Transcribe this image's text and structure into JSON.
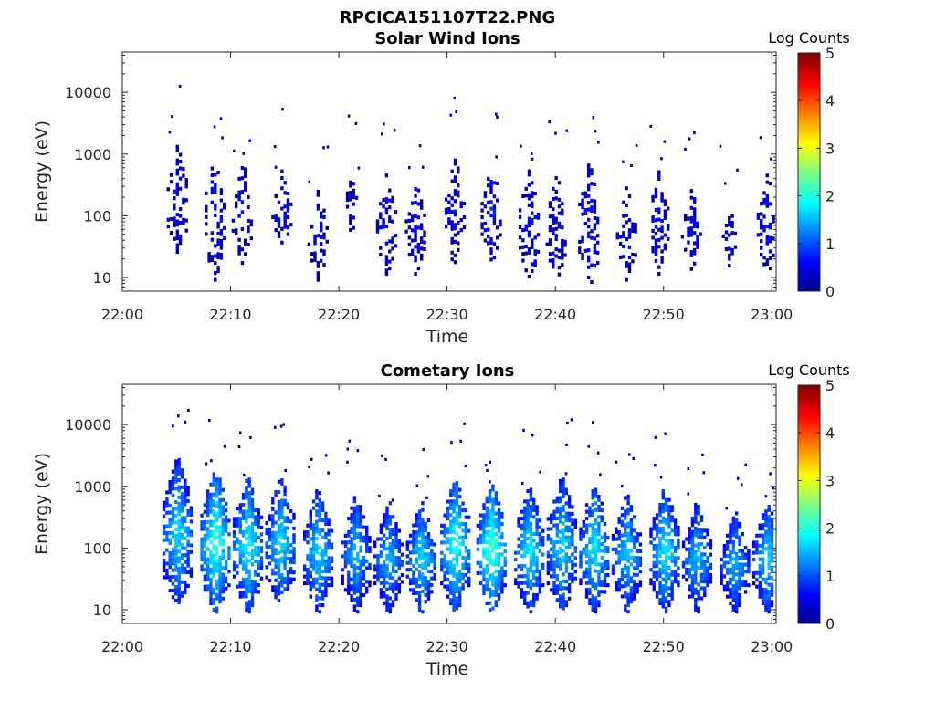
{
  "figure": {
    "title": "RPCICA151107T22.PNG"
  },
  "colors": {
    "axis": "#262626",
    "background": "#ffffff",
    "colormap": "jet"
  },
  "chart_data": [
    {
      "type": "heatmap",
      "title": "Solar Wind Ions",
      "xlabel": "Time",
      "ylabel": "Energy (eV)",
      "x_ticks": [
        "22:00",
        "22:10",
        "22:20",
        "22:30",
        "22:40",
        "22:50",
        "23:00"
      ],
      "x_range": [
        "22:00",
        "23:00"
      ],
      "y_scale": "log",
      "y_ticks": [
        "10",
        "100",
        "1000",
        "10000"
      ],
      "ylim": [
        6,
        45000
      ],
      "colorbar": {
        "label": "Log Counts",
        "ticks": [
          "0",
          "1",
          "2",
          "3",
          "4",
          "5"
        ],
        "range": [
          0,
          5
        ]
      },
      "grid": false,
      "level": "low",
      "bursts": [
        {
          "t": "22:05:00",
          "e_min": 20,
          "e_max": 1500,
          "peak": 0.6
        },
        {
          "t": "22:08:30",
          "e_min": 8,
          "e_max": 1200,
          "peak": 0.8
        },
        {
          "t": "22:11:00",
          "e_min": 15,
          "e_max": 800,
          "peak": 0.7
        },
        {
          "t": "22:14:40",
          "e_min": 25,
          "e_max": 600,
          "peak": 0.6
        },
        {
          "t": "22:18:00",
          "e_min": 8,
          "e_max": 300,
          "peak": 0.5
        },
        {
          "t": "22:21:00",
          "e_min": 40,
          "e_max": 500,
          "peak": 0.4
        },
        {
          "t": "22:24:20",
          "e_min": 10,
          "e_max": 500,
          "peak": 0.6
        },
        {
          "t": "22:27:00",
          "e_min": 10,
          "e_max": 400,
          "peak": 0.6
        },
        {
          "t": "22:30:40",
          "e_min": 12,
          "e_max": 1000,
          "peak": 0.7
        },
        {
          "t": "22:34:00",
          "e_min": 15,
          "e_max": 800,
          "peak": 0.8
        },
        {
          "t": "22:37:30",
          "e_min": 8,
          "e_max": 600,
          "peak": 0.7
        },
        {
          "t": "22:40:00",
          "e_min": 8,
          "e_max": 500,
          "peak": 0.6
        },
        {
          "t": "22:43:00",
          "e_min": 6,
          "e_max": 800,
          "peak": 0.8
        },
        {
          "t": "22:46:30",
          "e_min": 8,
          "e_max": 300,
          "peak": 0.6
        },
        {
          "t": "22:49:30",
          "e_min": 10,
          "e_max": 600,
          "peak": 0.7
        },
        {
          "t": "22:52:30",
          "e_min": 12,
          "e_max": 300,
          "peak": 0.6
        },
        {
          "t": "22:56:00",
          "e_min": 12,
          "e_max": 150,
          "peak": 0.5
        },
        {
          "t": "22:59:30",
          "e_min": 10,
          "e_max": 500,
          "peak": 0.7
        }
      ]
    },
    {
      "type": "heatmap",
      "title": "Cometary Ions",
      "xlabel": "Time",
      "ylabel": "Energy (eV)",
      "x_ticks": [
        "22:00",
        "22:10",
        "22:20",
        "22:30",
        "22:40",
        "22:50",
        "23:00"
      ],
      "x_range": [
        "22:00",
        "23:00"
      ],
      "y_scale": "log",
      "y_ticks": [
        "10",
        "100",
        "1000",
        "10000"
      ],
      "ylim": [
        6,
        45000
      ],
      "colorbar": {
        "label": "Log Counts",
        "ticks": [
          "0",
          "1",
          "2",
          "3",
          "4",
          "5"
        ],
        "range": [
          0,
          5
        ]
      },
      "grid": false,
      "level": "high",
      "bursts": [
        {
          "t": "22:05:00",
          "e_min": 10,
          "e_max": 3000,
          "peak": 1.8
        },
        {
          "t": "22:08:30",
          "e_min": 8,
          "e_max": 2000,
          "peak": 2.2
        },
        {
          "t": "22:11:30",
          "e_min": 8,
          "e_max": 1500,
          "peak": 2.0
        },
        {
          "t": "22:14:30",
          "e_min": 10,
          "e_max": 1500,
          "peak": 1.8
        },
        {
          "t": "22:18:00",
          "e_min": 8,
          "e_max": 1000,
          "peak": 1.8
        },
        {
          "t": "22:21:30",
          "e_min": 8,
          "e_max": 800,
          "peak": 1.6
        },
        {
          "t": "22:24:30",
          "e_min": 8,
          "e_max": 600,
          "peak": 1.6
        },
        {
          "t": "22:27:30",
          "e_min": 8,
          "e_max": 600,
          "peak": 1.8
        },
        {
          "t": "22:30:40",
          "e_min": 8,
          "e_max": 1500,
          "peak": 2.1
        },
        {
          "t": "22:34:00",
          "e_min": 8,
          "e_max": 1200,
          "peak": 2.3
        },
        {
          "t": "22:37:30",
          "e_min": 8,
          "e_max": 1000,
          "peak": 1.9
        },
        {
          "t": "22:40:30",
          "e_min": 8,
          "e_max": 1500,
          "peak": 1.8
        },
        {
          "t": "22:43:30",
          "e_min": 8,
          "e_max": 1200,
          "peak": 1.9
        },
        {
          "t": "22:46:30",
          "e_min": 8,
          "e_max": 800,
          "peak": 1.7
        },
        {
          "t": "22:50:00",
          "e_min": 8,
          "e_max": 1000,
          "peak": 1.9
        },
        {
          "t": "22:53:00",
          "e_min": 8,
          "e_max": 600,
          "peak": 1.6
        },
        {
          "t": "22:56:30",
          "e_min": 8,
          "e_max": 400,
          "peak": 1.6
        },
        {
          "t": "22:59:30",
          "e_min": 8,
          "e_max": 600,
          "peak": 1.8
        }
      ]
    }
  ]
}
